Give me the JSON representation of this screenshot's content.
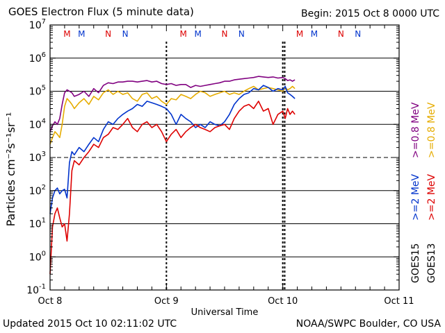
{
  "header": {
    "title": "GOES Electron Flux (5 minute data)",
    "begin": "Begin: 2015 Oct 8 0000 UTC"
  },
  "footer": {
    "updated": "Updated 2015 Oct 10 02:11:02 UTC",
    "credit": "NOAA/SWPC Boulder, CO USA"
  },
  "chart_data": {
    "type": "line",
    "title": "GOES Electron Flux (5 minute data)",
    "xlabel": "Universal Time",
    "ylabel": "Particles cm⁻²s⁻¹sr⁻¹",
    "y_scale": "log",
    "ylim": [
      0.1,
      10000000
    ],
    "xlim_hours": [
      0,
      72
    ],
    "x_ticks": [
      {
        "hour": 0,
        "label": "Oct 8"
      },
      {
        "hour": 24,
        "label": "Oct 9"
      },
      {
        "hour": 48,
        "label": "Oct 10"
      },
      {
        "hour": 72,
        "label": "Oct 11"
      }
    ],
    "y_tick_exponents": [
      -1,
      0,
      1,
      2,
      3,
      4,
      5,
      6,
      7
    ],
    "threshold_level": 1000,
    "grid": true,
    "legend": {
      "placement": "right",
      "satellite_labels": [
        "GOES15",
        "GOES13"
      ],
      "entries": [
        {
          "label": ">=0.8 MeV",
          "color": "#800080"
        },
        {
          "label": ">=0.8 MeV",
          "color": "#e6ac00"
        },
        {
          "label": ">=2 MeV",
          "color": "#0033cc"
        },
        {
          "label": ">=2 MeV",
          "color": "#dd0000"
        }
      ]
    },
    "markers": [
      {
        "hour": 3.5,
        "label": "M",
        "color": "#dd0000"
      },
      {
        "hour": 6.5,
        "label": "M",
        "color": "#0033cc"
      },
      {
        "hour": 12.0,
        "label": "N",
        "color": "#dd0000"
      },
      {
        "hour": 15.5,
        "label": "N",
        "color": "#0033cc"
      },
      {
        "hour": 27.5,
        "label": "M",
        "color": "#dd0000"
      },
      {
        "hour": 30.5,
        "label": "M",
        "color": "#0033cc"
      },
      {
        "hour": 36.0,
        "label": "N",
        "color": "#dd0000"
      },
      {
        "hour": 39.5,
        "label": "N",
        "color": "#0033cc"
      },
      {
        "hour": 51.5,
        "label": "M",
        "color": "#dd0000"
      },
      {
        "hour": 54.5,
        "label": "M",
        "color": "#0033cc"
      },
      {
        "hour": 60.0,
        "label": "N",
        "color": "#dd0000"
      },
      {
        "hour": 63.5,
        "label": "N",
        "color": "#0033cc"
      }
    ],
    "dotted_lines_hours": [
      24,
      48,
      48.4
    ],
    "series": [
      {
        "name": "GOES15 >=0.8 MeV",
        "color": "#800080",
        "x": [
          0,
          0.5,
          1,
          1.5,
          2,
          2.5,
          3,
          3.5,
          4,
          4.5,
          5,
          6,
          7,
          8,
          9,
          10,
          11,
          12,
          13,
          14,
          15,
          16,
          17,
          18,
          19,
          20,
          21,
          22,
          23,
          24,
          25,
          26,
          27,
          28,
          29,
          30,
          31,
          32,
          33,
          34,
          35,
          36,
          37,
          38,
          39,
          40,
          41,
          42,
          43,
          44,
          45,
          46,
          47,
          48,
          48.5,
          49,
          49.5,
          50,
          50.5
        ],
        "y": [
          6000,
          9000,
          12000,
          10000,
          15000,
          40000,
          90000,
          110000,
          100000,
          90000,
          70000,
          80000,
          100000,
          70000,
          120000,
          90000,
          150000,
          180000,
          170000,
          190000,
          190000,
          200000,
          200000,
          190000,
          200000,
          210000,
          190000,
          200000,
          170000,
          160000,
          170000,
          150000,
          160000,
          160000,
          130000,
          150000,
          140000,
          150000,
          160000,
          170000,
          180000,
          200000,
          200000,
          220000,
          230000,
          240000,
          250000,
          260000,
          280000,
          270000,
          260000,
          270000,
          250000,
          260000,
          240000,
          210000,
          220000,
          200000,
          220000
        ]
      },
      {
        "name": "GOES13 >=0.8 MeV",
        "color": "#e6ac00",
        "x": [
          0,
          0.5,
          1,
          1.5,
          2,
          2.5,
          3,
          3.5,
          4,
          4.5,
          5,
          6,
          7,
          8,
          9,
          10,
          11,
          12,
          13,
          14,
          15,
          16,
          17,
          18,
          19,
          20,
          21,
          22,
          23,
          24,
          25,
          26,
          27,
          28,
          29,
          30,
          31,
          32,
          33,
          34,
          35,
          36,
          37,
          38,
          39,
          40,
          41,
          42,
          43,
          44,
          45,
          46,
          47,
          48,
          48.5,
          49,
          49.5,
          50,
          50.5
        ],
        "y": [
          2500,
          4000,
          6000,
          5000,
          4000,
          10000,
          35000,
          60000,
          50000,
          40000,
          30000,
          45000,
          60000,
          40000,
          70000,
          55000,
          90000,
          110000,
          80000,
          100000,
          80000,
          90000,
          60000,
          50000,
          80000,
          90000,
          60000,
          70000,
          50000,
          40000,
          60000,
          55000,
          80000,
          70000,
          60000,
          80000,
          100000,
          90000,
          70000,
          80000,
          90000,
          100000,
          80000,
          90000,
          80000,
          100000,
          120000,
          140000,
          110000,
          120000,
          130000,
          120000,
          110000,
          100000,
          130000,
          110000,
          120000,
          140000,
          120000
        ]
      },
      {
        "name": "GOES15 >=2 MeV",
        "color": "#0033cc",
        "x": [
          0,
          0.5,
          1,
          1.5,
          2,
          2.5,
          3,
          3.5,
          4,
          4.5,
          5,
          6,
          7,
          8,
          9,
          10,
          11,
          12,
          13,
          14,
          15,
          16,
          17,
          18,
          19,
          20,
          21,
          22,
          23,
          24,
          25,
          26,
          27,
          28,
          29,
          30,
          31,
          32,
          33,
          34,
          35,
          36,
          37,
          38,
          39,
          40,
          41,
          42,
          43,
          44,
          45,
          46,
          47,
          48,
          48.5,
          49,
          49.5,
          50,
          50.5
        ],
        "y": [
          20,
          60,
          100,
          120,
          80,
          100,
          110,
          60,
          700,
          1500,
          1200,
          2000,
          1500,
          2500,
          4000,
          3000,
          7000,
          12000,
          10000,
          15000,
          20000,
          25000,
          30000,
          40000,
          35000,
          50000,
          45000,
          40000,
          35000,
          30000,
          20000,
          10000,
          20000,
          15000,
          12000,
          8000,
          10000,
          8000,
          12000,
          10000,
          9000,
          12000,
          20000,
          40000,
          60000,
          80000,
          90000,
          120000,
          110000,
          150000,
          130000,
          100000,
          120000,
          110000,
          140000,
          90000,
          80000,
          70000,
          60000
        ]
      },
      {
        "name": "GOES13 >=2 MeV",
        "color": "#dd0000",
        "x": [
          0,
          0.5,
          1,
          1.5,
          2,
          2.5,
          3,
          3.5,
          4,
          4.5,
          5,
          6,
          7,
          8,
          9,
          10,
          11,
          12,
          13,
          14,
          15,
          16,
          17,
          18,
          19,
          20,
          21,
          22,
          23,
          24,
          25,
          26,
          27,
          28,
          29,
          30,
          31,
          32,
          33,
          34,
          35,
          36,
          37,
          38,
          39,
          40,
          41,
          42,
          43,
          44,
          45,
          46,
          47,
          48,
          48.5,
          49,
          49.5,
          50,
          50.5
        ],
        "y": [
          0.3,
          8,
          20,
          30,
          15,
          8,
          10,
          3,
          20,
          400,
          800,
          600,
          1000,
          1500,
          2500,
          2000,
          4000,
          5000,
          8000,
          7000,
          10000,
          15000,
          8000,
          6000,
          10000,
          12000,
          8000,
          10000,
          6000,
          3000,
          5000,
          7000,
          4000,
          6000,
          8000,
          10000,
          8000,
          7000,
          6000,
          8000,
          9000,
          10000,
          7000,
          15000,
          25000,
          35000,
          40000,
          30000,
          50000,
          25000,
          30000,
          10000,
          20000,
          25000,
          15000,
          30000,
          20000,
          25000,
          20000
        ]
      }
    ]
  }
}
